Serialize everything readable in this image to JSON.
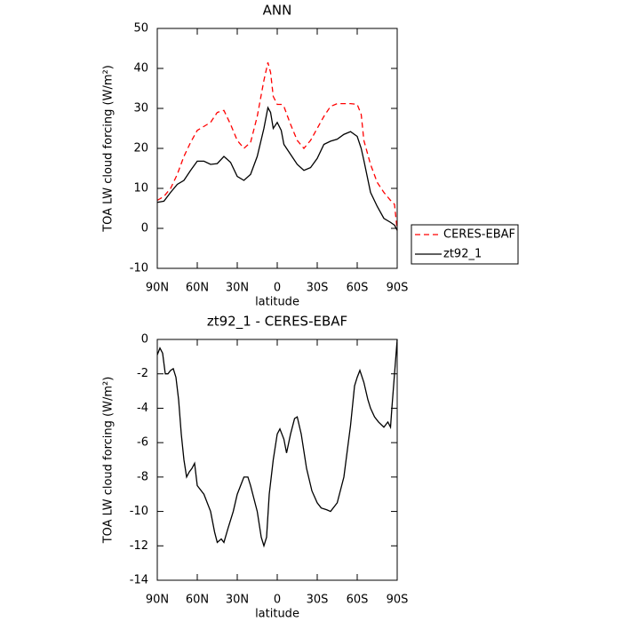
{
  "chart_data": [
    {
      "type": "line",
      "title": "ANN",
      "x_label": "latitude",
      "y_label": "TOA LW cloud forcing (W/m²)",
      "x": [
        90,
        85,
        80,
        75,
        70,
        65,
        60,
        55,
        50,
        45,
        40,
        35,
        30,
        25,
        20,
        15,
        10,
        7,
        5,
        3,
        0,
        -3,
        -5,
        -10,
        -15,
        -20,
        -25,
        -30,
        -35,
        -40,
        -45,
        -50,
        -55,
        -60,
        -63,
        -65,
        -70,
        -75,
        -80,
        -85,
        -88,
        -90
      ],
      "series": [
        {
          "name": "CERES-EBAF",
          "color": "#ff0000",
          "dashed": true,
          "values": [
            7,
            8,
            10,
            13.5,
            18,
            21.5,
            24.5,
            25.5,
            26.5,
            29,
            29.5,
            26,
            22,
            20,
            21.5,
            28,
            37,
            41.5,
            39,
            33,
            31,
            31,
            30.5,
            26,
            22,
            20,
            22,
            25,
            28,
            30.5,
            31.2,
            31.2,
            31.2,
            31,
            28.5,
            22,
            16,
            11.5,
            9,
            7,
            6,
            -0.5
          ]
        },
        {
          "name": "zt92_1",
          "color": "#000000",
          "dashed": false,
          "values": [
            6.5,
            6.8,
            9,
            11,
            12,
            14.5,
            16.8,
            16.8,
            16,
            16.2,
            18,
            16.5,
            13,
            12,
            13.5,
            18,
            25,
            30.2,
            29,
            25,
            26.5,
            24.5,
            21,
            18.5,
            16,
            14.5,
            15.2,
            17.5,
            21,
            21.8,
            22.3,
            23.5,
            24.2,
            23,
            20,
            17,
            9,
            5.5,
            2.5,
            1.5,
            0.8,
            -0.5
          ]
        }
      ],
      "xlim": [
        90,
        -90
      ],
      "xticks": [
        {
          "value": 90,
          "label": "90N"
        },
        {
          "value": 60,
          "label": "60N"
        },
        {
          "value": 30,
          "label": "30N"
        },
        0,
        {
          "value": -30,
          "label": "30S"
        },
        {
          "value": -60,
          "label": "60S"
        },
        {
          "value": -90,
          "label": "90S"
        }
      ],
      "ylim": [
        -10,
        50
      ],
      "yticks": [
        -10,
        0,
        10,
        20,
        30,
        40,
        50
      ],
      "legend": "right"
    },
    {
      "type": "line",
      "title": "zt92_1 - CERES-EBAF",
      "x_label": "latitude",
      "y_label": "TOA LW cloud forcing (W/m²)",
      "x": [
        90,
        88,
        86,
        84,
        82,
        80,
        78,
        76,
        74,
        72,
        70,
        68,
        66,
        64,
        62,
        60,
        55,
        50,
        47,
        45,
        42,
        40,
        37,
        33,
        30,
        25,
        22,
        20,
        15,
        12,
        10,
        8,
        6,
        3,
        0,
        -2,
        -5,
        -7,
        -10,
        -13,
        -15,
        -18,
        -22,
        -26,
        -30,
        -33,
        -37,
        -40,
        -45,
        -50,
        -55,
        -58,
        -60,
        -62,
        -65,
        -68,
        -70,
        -73,
        -76,
        -80,
        -83,
        -85,
        -86,
        -88,
        -90
      ],
      "series": [
        {
          "name": "zt92_1 - CERES-EBAF",
          "color": "#000000",
          "dashed": false,
          "values": [
            -0.9,
            -0.5,
            -0.8,
            -2,
            -2,
            -1.8,
            -1.7,
            -2.2,
            -3.5,
            -5.5,
            -7,
            -8,
            -7.7,
            -7.5,
            -7.2,
            -8.5,
            -9,
            -10,
            -11.2,
            -11.8,
            -11.6,
            -11.8,
            -11,
            -10,
            -9,
            -8,
            -8,
            -8.5,
            -10,
            -11.5,
            -12,
            -11.5,
            -9,
            -7,
            -5.5,
            -5.2,
            -5.8,
            -6.6,
            -5.5,
            -4.6,
            -4.5,
            -5.5,
            -7.5,
            -8.8,
            -9.5,
            -9.8,
            -9.9,
            -10,
            -9.5,
            -8,
            -5,
            -2.7,
            -2.2,
            -1.8,
            -2.5,
            -3.5,
            -4,
            -4.5,
            -4.8,
            -5.1,
            -4.8,
            -5.1,
            -4,
            -2,
            0
          ]
        }
      ],
      "xlim": [
        90,
        -90
      ],
      "xticks": [
        {
          "value": 90,
          "label": "90N"
        },
        {
          "value": 60,
          "label": "60N"
        },
        {
          "value": 30,
          "label": "30N"
        },
        0,
        {
          "value": -30,
          "label": "30S"
        },
        {
          "value": -60,
          "label": "60S"
        },
        {
          "value": -90,
          "label": "90S"
        }
      ],
      "ylim": [
        -14,
        0
      ],
      "yticks": [
        -14,
        -12,
        -10,
        -8,
        -6,
        -4,
        -2,
        0
      ]
    }
  ]
}
